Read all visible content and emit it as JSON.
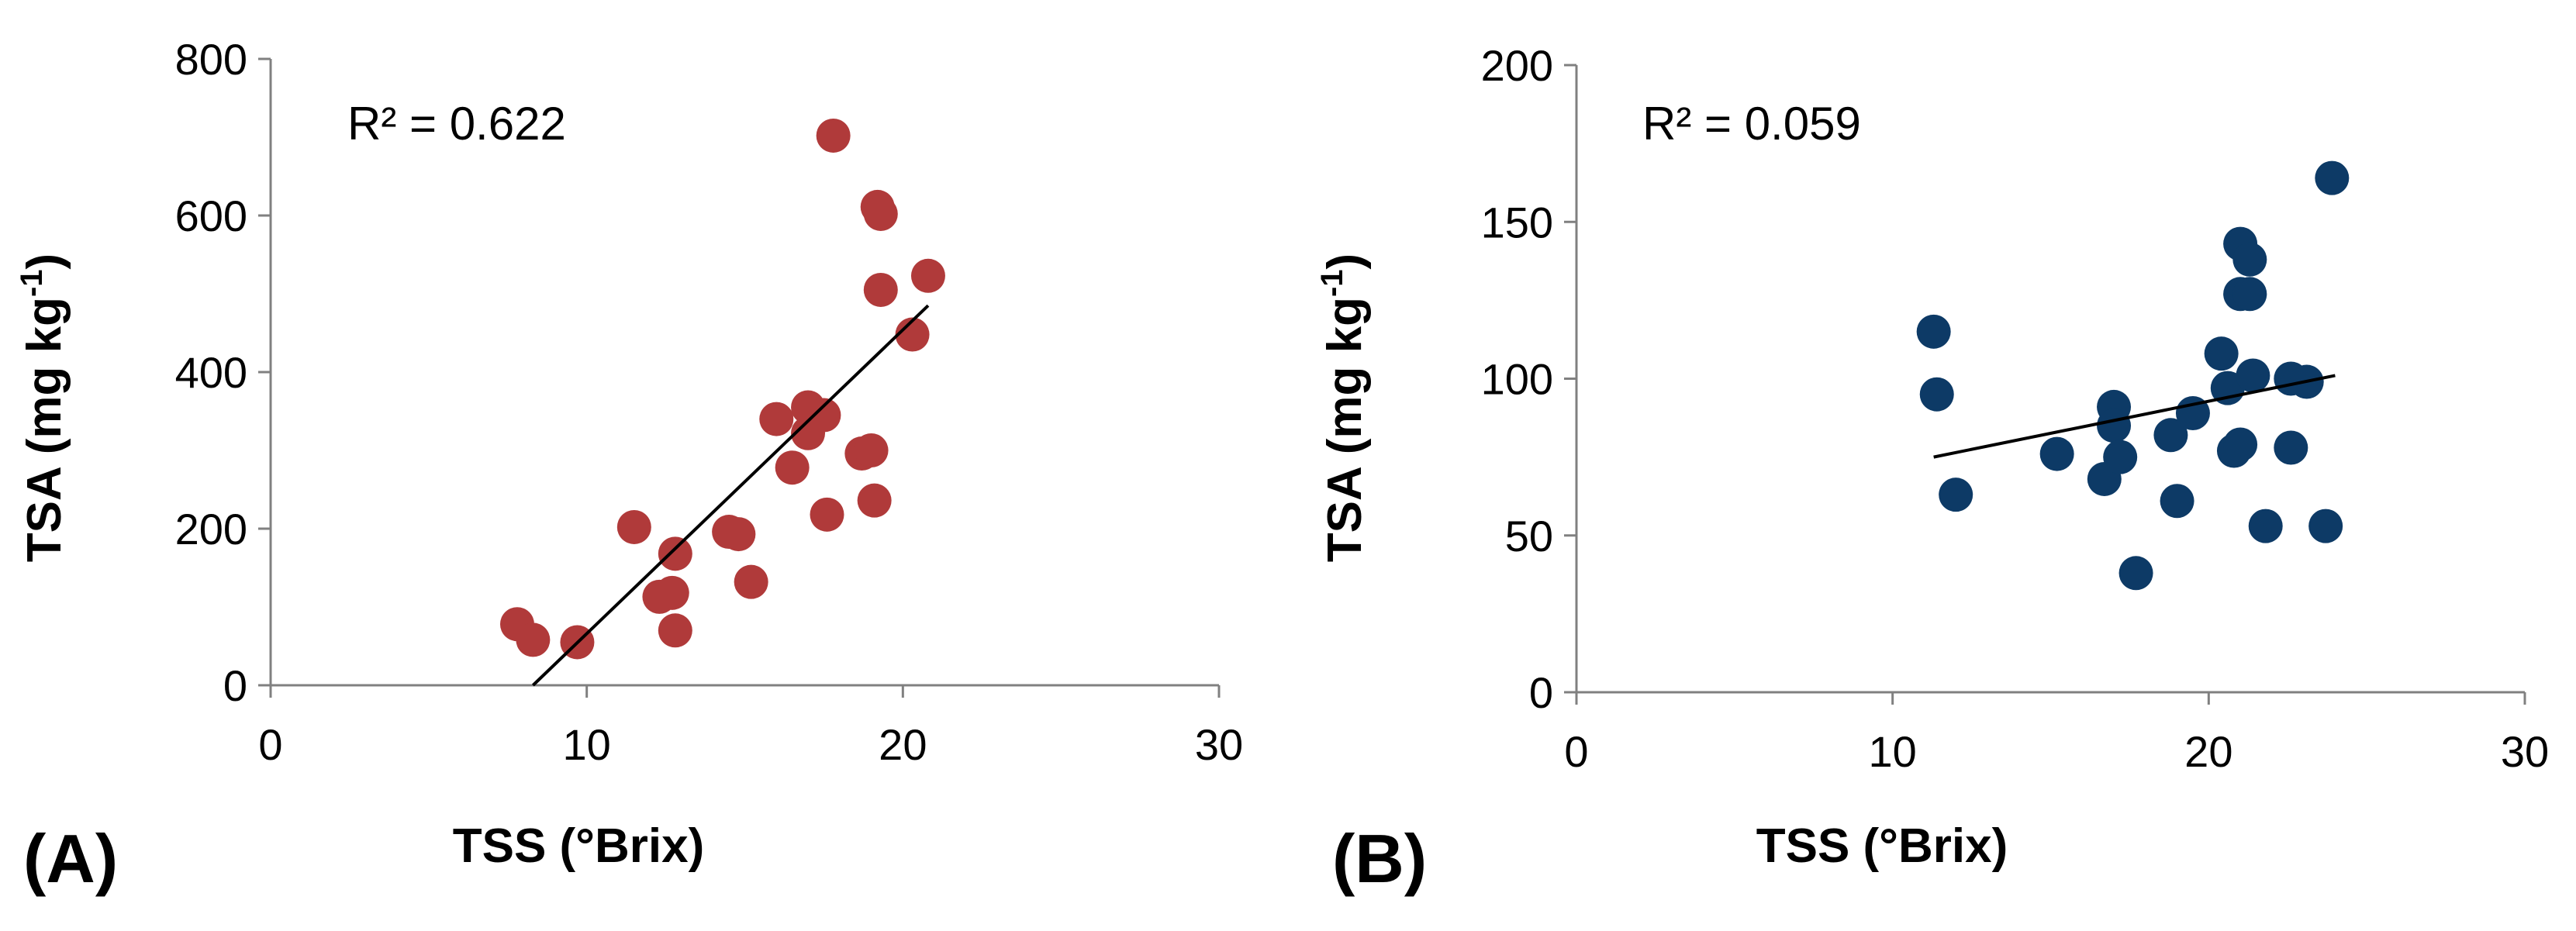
{
  "chart_data": [
    {
      "type": "scatter",
      "panel_label": "(A)",
      "xlabel": "TSS (°Brix)",
      "ylabel_main": "TSA (mg kg",
      "ylabel_sup": "-1",
      "ylabel_tail": ")",
      "r2_label": "R² = 0.622",
      "xlim": [
        0,
        30
      ],
      "ylim": [
        0,
        800
      ],
      "xticks": [
        0,
        10,
        20,
        30
      ],
      "yticks": [
        0,
        200,
        400,
        600,
        800
      ],
      "xtick_labels": [
        "0",
        "10",
        "20",
        "30"
      ],
      "ytick_labels": [
        "0",
        "200",
        "400",
        "600",
        "800"
      ],
      "marker_color": "#b03a3a",
      "trendline": {
        "x": [
          8.3,
          20.8
        ],
        "y": [
          0,
          485
        ]
      },
      "points": [
        {
          "x": 7.8,
          "y": 78
        },
        {
          "x": 8.3,
          "y": 58
        },
        {
          "x": 9.7,
          "y": 55
        },
        {
          "x": 11.5,
          "y": 202
        },
        {
          "x": 12.3,
          "y": 113
        },
        {
          "x": 12.7,
          "y": 118
        },
        {
          "x": 12.8,
          "y": 70
        },
        {
          "x": 12.8,
          "y": 168
        },
        {
          "x": 14.5,
          "y": 196
        },
        {
          "x": 14.8,
          "y": 193
        },
        {
          "x": 15.2,
          "y": 132
        },
        {
          "x": 16.0,
          "y": 340
        },
        {
          "x": 16.5,
          "y": 278
        },
        {
          "x": 17.0,
          "y": 355
        },
        {
          "x": 17.0,
          "y": 322
        },
        {
          "x": 17.5,
          "y": 345
        },
        {
          "x": 17.6,
          "y": 218
        },
        {
          "x": 17.8,
          "y": 702
        },
        {
          "x": 18.7,
          "y": 296
        },
        {
          "x": 19.0,
          "y": 300
        },
        {
          "x": 19.1,
          "y": 236
        },
        {
          "x": 19.2,
          "y": 611
        },
        {
          "x": 19.3,
          "y": 602
        },
        {
          "x": 19.3,
          "y": 505
        },
        {
          "x": 20.3,
          "y": 448
        },
        {
          "x": 20.8,
          "y": 523
        }
      ]
    },
    {
      "type": "scatter",
      "panel_label": "(B)",
      "xlabel": "TSS (°Brix)",
      "ylabel_main": "TSA (mg kg",
      "ylabel_sup": "-1",
      "ylabel_tail": ")",
      "r2_label": "R² = 0.059",
      "xlim": [
        0,
        30
      ],
      "ylim": [
        0,
        200
      ],
      "xticks": [
        0,
        10,
        20,
        30
      ],
      "yticks": [
        0,
        50,
        100,
        150,
        200
      ],
      "xtick_labels": [
        "0",
        "10",
        "20",
        "30"
      ],
      "ytick_labels": [
        "0",
        "50",
        "100",
        "150",
        "200"
      ],
      "marker_color": "#0d3a66",
      "trendline": {
        "x": [
          11.3,
          24.0
        ],
        "y": [
          75,
          101
        ]
      },
      "points": [
        {
          "x": 11.3,
          "y": 115
        },
        {
          "x": 11.4,
          "y": 95
        },
        {
          "x": 12.0,
          "y": 63
        },
        {
          "x": 15.2,
          "y": 76
        },
        {
          "x": 16.7,
          "y": 68
        },
        {
          "x": 17.0,
          "y": 91
        },
        {
          "x": 17.0,
          "y": 85
        },
        {
          "x": 17.2,
          "y": 75
        },
        {
          "x": 17.7,
          "y": 38
        },
        {
          "x": 18.8,
          "y": 82
        },
        {
          "x": 19.0,
          "y": 61
        },
        {
          "x": 19.5,
          "y": 89
        },
        {
          "x": 20.4,
          "y": 108
        },
        {
          "x": 20.6,
          "y": 97
        },
        {
          "x": 20.8,
          "y": 77
        },
        {
          "x": 21.0,
          "y": 79
        },
        {
          "x": 21.0,
          "y": 127
        },
        {
          "x": 21.0,
          "y": 143
        },
        {
          "x": 21.3,
          "y": 138
        },
        {
          "x": 21.3,
          "y": 127
        },
        {
          "x": 21.4,
          "y": 101
        },
        {
          "x": 21.8,
          "y": 53
        },
        {
          "x": 22.6,
          "y": 100
        },
        {
          "x": 22.6,
          "y": 78
        },
        {
          "x": 23.1,
          "y": 99
        },
        {
          "x": 23.7,
          "y": 53
        },
        {
          "x": 23.9,
          "y": 164
        }
      ]
    }
  ]
}
